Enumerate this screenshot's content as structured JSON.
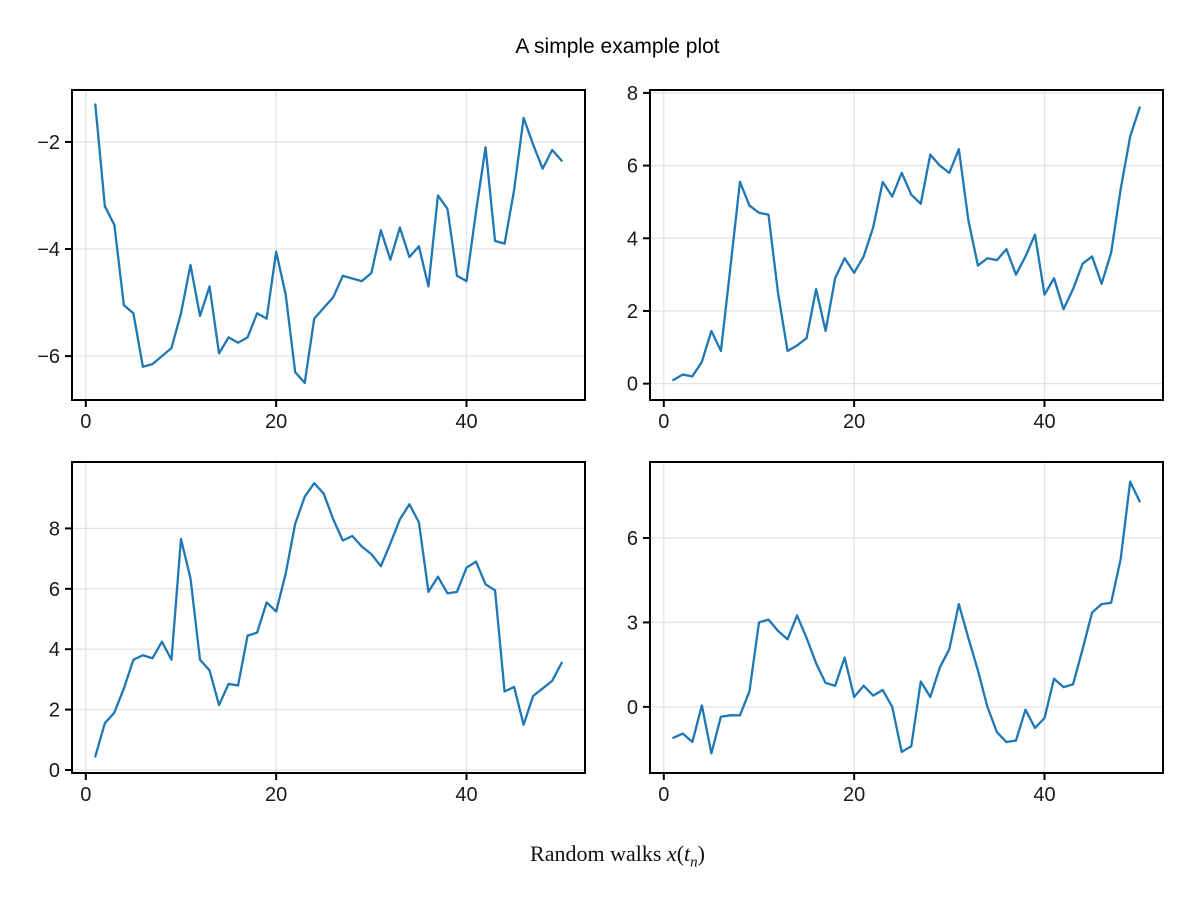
{
  "figure": {
    "title": "A simple example plot",
    "xlabel": {
      "prefix": "Random walks ",
      "var1": "x",
      "open": "(",
      "var2": "t",
      "subscript": "n",
      "close": ")"
    },
    "colors": {
      "background": "#ffffff",
      "line": "#1f77b4",
      "grid": "#e3e3e3",
      "spine": "#000000",
      "tick_label": "#1a1a1a",
      "title": "#000000"
    }
  },
  "chart_data": [
    {
      "name": "random-walk-top-left",
      "type": "line",
      "x_start": 1,
      "x_step": 1,
      "n_points": 50,
      "values": [
        -1.3,
        -3.2,
        -3.55,
        -5.05,
        -5.2,
        -6.2,
        -6.15,
        -6.0,
        -5.85,
        -5.2,
        -4.3,
        -5.25,
        -4.7,
        -5.95,
        -5.65,
        -5.75,
        -5.65,
        -5.2,
        -5.3,
        -4.05,
        -4.85,
        -6.3,
        -6.5,
        -5.3,
        -5.1,
        -4.9,
        -4.5,
        -4.55,
        -4.6,
        -4.45,
        -3.65,
        -4.2,
        -3.6,
        -4.15,
        -3.95,
        -4.7,
        -3.0,
        -3.25,
        -4.5,
        -4.6,
        -3.3,
        -2.1,
        -3.85,
        -3.9,
        -2.9,
        -1.55,
        -2.05,
        -2.5,
        -2.15,
        -2.35
      ],
      "xticks": [
        0,
        20,
        40
      ],
      "yticks": [
        -6,
        -4,
        -2
      ],
      "xlim": [
        -1.45,
        52.45
      ],
      "ylim": [
        -6.82,
        -1.03
      ],
      "grid": true,
      "legend": false
    },
    {
      "name": "random-walk-top-right",
      "type": "line",
      "x_start": 1,
      "x_step": 1,
      "n_points": 50,
      "values": [
        0.1,
        0.25,
        0.2,
        0.6,
        1.45,
        0.9,
        3.2,
        5.55,
        4.9,
        4.7,
        4.65,
        2.5,
        0.9,
        1.05,
        1.25,
        2.6,
        1.45,
        2.9,
        3.45,
        3.05,
        3.5,
        4.3,
        5.55,
        5.15,
        5.8,
        5.2,
        4.95,
        6.3,
        6.0,
        5.8,
        6.45,
        4.5,
        3.25,
        3.45,
        3.4,
        3.7,
        3.0,
        3.5,
        4.1,
        2.45,
        2.9,
        2.05,
        2.6,
        3.3,
        3.5,
        2.75,
        3.6,
        5.35,
        6.8,
        7.6
      ],
      "xticks": [
        0,
        20,
        40
      ],
      "yticks": [
        0,
        2,
        4,
        6,
        8
      ],
      "xlim": [
        -1.45,
        52.45
      ],
      "ylim": [
        -0.45,
        8.08
      ],
      "grid": true,
      "legend": false
    },
    {
      "name": "random-walk-bottom-left",
      "type": "line",
      "x_start": 1,
      "x_step": 1,
      "n_points": 50,
      "values": [
        0.45,
        1.55,
        1.9,
        2.7,
        3.65,
        3.8,
        3.7,
        4.25,
        3.65,
        7.65,
        6.35,
        3.65,
        3.3,
        2.15,
        2.85,
        2.8,
        4.45,
        4.55,
        5.55,
        5.25,
        6.5,
        8.15,
        9.05,
        9.5,
        9.15,
        8.3,
        7.6,
        7.75,
        7.4,
        7.15,
        6.75,
        7.5,
        8.3,
        8.8,
        8.2,
        5.9,
        6.4,
        5.85,
        5.9,
        6.7,
        6.9,
        6.15,
        5.95,
        2.6,
        2.75,
        1.5,
        2.45,
        2.7,
        2.95,
        3.55
      ],
      "xticks": [
        0,
        20,
        40
      ],
      "yticks": [
        0,
        2,
        4,
        6,
        8
      ],
      "xlim": [
        -1.45,
        52.45
      ],
      "ylim": [
        -0.1,
        10.2
      ],
      "grid": true,
      "legend": false
    },
    {
      "name": "random-walk-bottom-right",
      "type": "line",
      "x_start": 1,
      "x_step": 1,
      "n_points": 50,
      "values": [
        -1.1,
        -0.95,
        -1.25,
        0.05,
        -1.65,
        -0.35,
        -0.3,
        -0.3,
        0.55,
        3.0,
        3.1,
        2.7,
        2.4,
        3.25,
        2.45,
        1.55,
        0.85,
        0.75,
        1.75,
        0.35,
        0.75,
        0.4,
        0.6,
        0.0,
        -1.6,
        -1.4,
        0.9,
        0.35,
        1.4,
        2.05,
        3.65,
        2.45,
        1.3,
        0.0,
        -0.9,
        -1.25,
        -1.2,
        -0.1,
        -0.75,
        -0.4,
        1.0,
        0.7,
        0.8,
        2.05,
        3.35,
        3.65,
        3.7,
        5.25,
        8.0,
        7.3
      ],
      "xticks": [
        0,
        20,
        40
      ],
      "yticks": [
        0,
        3,
        6
      ],
      "xlim": [
        -1.45,
        52.45
      ],
      "ylim": [
        -2.35,
        8.7
      ],
      "grid": true,
      "legend": false
    }
  ]
}
